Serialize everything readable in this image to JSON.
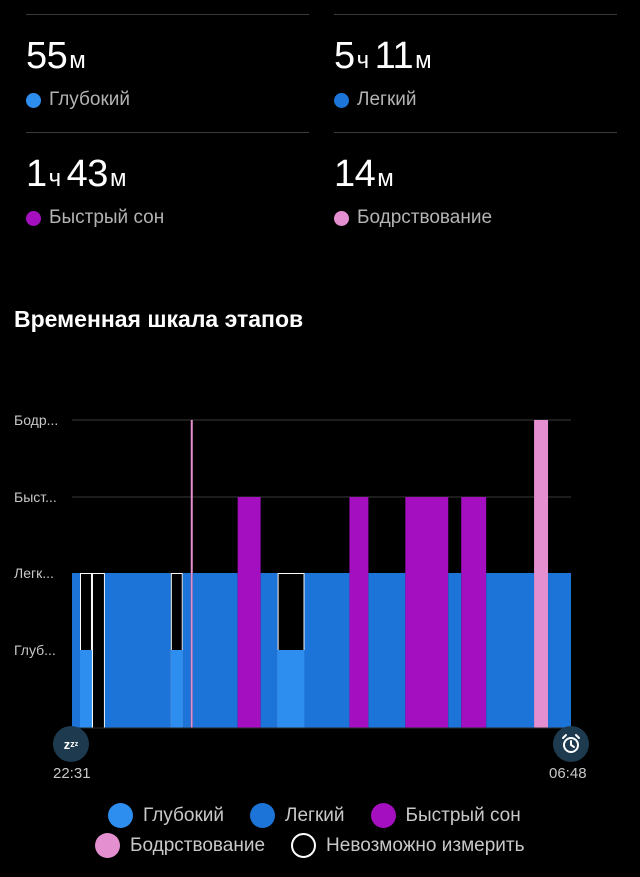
{
  "stats": [
    {
      "value1": "55",
      "unit1": "м",
      "value2": "",
      "unit2": "",
      "label": "Глубокий",
      "color": "#2d8ef0"
    },
    {
      "value1": "5",
      "unit1": "ч",
      "value2": "11",
      "unit2": "м",
      "label": "Легкий",
      "color": "#1c73d8"
    },
    {
      "value1": "1",
      "unit1": "ч",
      "value2": "43",
      "unit2": "м",
      "label": "Быстрый сон",
      "color": "#a40fc0"
    },
    {
      "value1": "14",
      "unit1": "м",
      "value2": "",
      "unit2": "",
      "label": "Бодрствование",
      "color": "#e48fd0"
    }
  ],
  "timeline": {
    "title": "Временная шкала этапов",
    "y_labels": [
      "Бодр...",
      "Быст...",
      "Легк...",
      "Глуб..."
    ],
    "start_time": "22:31",
    "end_time": "06:48",
    "start_icon": "sleep-zzz-icon",
    "end_icon": "alarm-clock-icon"
  },
  "chart_data": {
    "type": "bar",
    "title": "Временная шкала этапов",
    "x_range": [
      "22:31",
      "06:48"
    ],
    "stages": [
      "Глубокий",
      "Легкий",
      "Быстрый сон",
      "Бодрствование",
      "Невозможно измерить"
    ],
    "stage_levels": {
      "Глубокий": 1,
      "Легкий": 2,
      "Быстрый сон": 3,
      "Бодрствование": 4
    },
    "segments": [
      {
        "start": 0.0,
        "end": 0.016,
        "stage": "Легкий"
      },
      {
        "start": 0.016,
        "end": 0.04,
        "stage": "Невозможно измерить"
      },
      {
        "start": 0.016,
        "end": 0.04,
        "stage": "Глубокий"
      },
      {
        "start": 0.04,
        "end": 0.066,
        "stage": "Невозможно измерить"
      },
      {
        "start": 0.066,
        "end": 0.198,
        "stage": "Легкий"
      },
      {
        "start": 0.198,
        "end": 0.222,
        "stage": "Невозможно измерить"
      },
      {
        "start": 0.198,
        "end": 0.222,
        "stage": "Глубокий"
      },
      {
        "start": 0.222,
        "end": 0.238,
        "stage": "Легкий"
      },
      {
        "start": 0.238,
        "end": 0.242,
        "stage": "Бодрствование"
      },
      {
        "start": 0.242,
        "end": 0.332,
        "stage": "Легкий"
      },
      {
        "start": 0.332,
        "end": 0.378,
        "stage": "Быстрый сон"
      },
      {
        "start": 0.378,
        "end": 0.412,
        "stage": "Легкий"
      },
      {
        "start": 0.412,
        "end": 0.466,
        "stage": "Невозможно измерить"
      },
      {
        "start": 0.412,
        "end": 0.466,
        "stage": "Глубокий"
      },
      {
        "start": 0.466,
        "end": 0.556,
        "stage": "Легкий"
      },
      {
        "start": 0.556,
        "end": 0.594,
        "stage": "Быстрый сон"
      },
      {
        "start": 0.594,
        "end": 0.668,
        "stage": "Легкий"
      },
      {
        "start": 0.668,
        "end": 0.754,
        "stage": "Быстрый сон"
      },
      {
        "start": 0.754,
        "end": 0.78,
        "stage": "Легкий"
      },
      {
        "start": 0.78,
        "end": 0.83,
        "stage": "Быстрый сон"
      },
      {
        "start": 0.83,
        "end": 0.926,
        "stage": "Легкий"
      },
      {
        "start": 0.926,
        "end": 0.954,
        "stage": "Бодрствование"
      },
      {
        "start": 0.954,
        "end": 1.0,
        "stage": "Легкий"
      }
    ]
  },
  "legend": [
    {
      "label": "Глубокий",
      "color": "#2d8ef0",
      "hollow": false
    },
    {
      "label": "Легкий",
      "color": "#1c73d8",
      "hollow": false
    },
    {
      "label": "Быстрый сон",
      "color": "#a40fc0",
      "hollow": false
    },
    {
      "label": "Бодрствование",
      "color": "#e48fd0",
      "hollow": false
    },
    {
      "label": "Невозможно измерить",
      "color": "#ffffff",
      "hollow": true
    }
  ]
}
